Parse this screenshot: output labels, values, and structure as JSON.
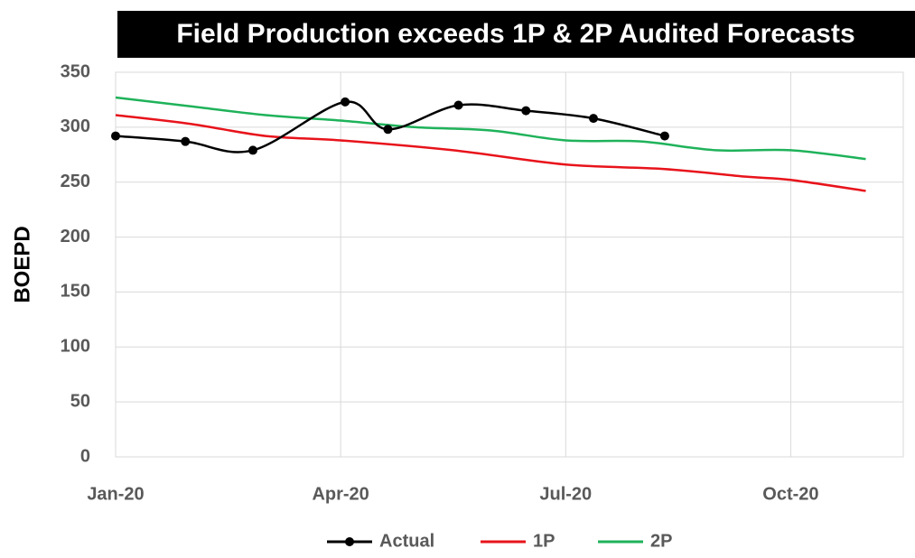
{
  "chart_data": {
    "type": "line",
    "title": "Field Production  exceeds 1P & 2P Audited Forecasts",
    "ylabel": "BOEPD",
    "xlim": [
      0,
      10.5
    ],
    "xticks": [
      {
        "value": 0,
        "label": "Jan-20"
      },
      {
        "value": 3,
        "label": "Apr-20"
      },
      {
        "value": 6,
        "label": "Jul-20"
      },
      {
        "value": 9,
        "label": "Oct-20"
      }
    ],
    "ylim": [
      0,
      350
    ],
    "yticks": [
      0,
      50,
      100,
      150,
      200,
      250,
      300,
      350
    ],
    "grid": true,
    "legend": "bottom",
    "series": [
      {
        "name": "Actual",
        "color": "#000000",
        "markers": true,
        "x": [
          0,
          0.93,
          1.83,
          3.06,
          3.63,
          4.57,
          5.47,
          6.37,
          7.32
        ],
        "values": [
          292,
          287,
          279,
          323,
          298,
          320,
          315,
          308,
          292
        ]
      },
      {
        "name": "1P",
        "color": "#e8131b",
        "markers": false,
        "x": [
          0,
          1,
          2,
          3,
          4.5,
          6,
          7.3,
          8.4,
          9,
          10
        ],
        "values": [
          311,
          303,
          292,
          288,
          279,
          266,
          262,
          255,
          252,
          242
        ]
      },
      {
        "name": "2P",
        "color": "#1fb25a",
        "markers": false,
        "x": [
          0,
          1,
          2,
          3,
          4,
          5,
          6,
          7,
          8,
          9,
          10
        ],
        "values": [
          327,
          319,
          311,
          306,
          300,
          297,
          288,
          287,
          279,
          279,
          271
        ]
      }
    ]
  }
}
